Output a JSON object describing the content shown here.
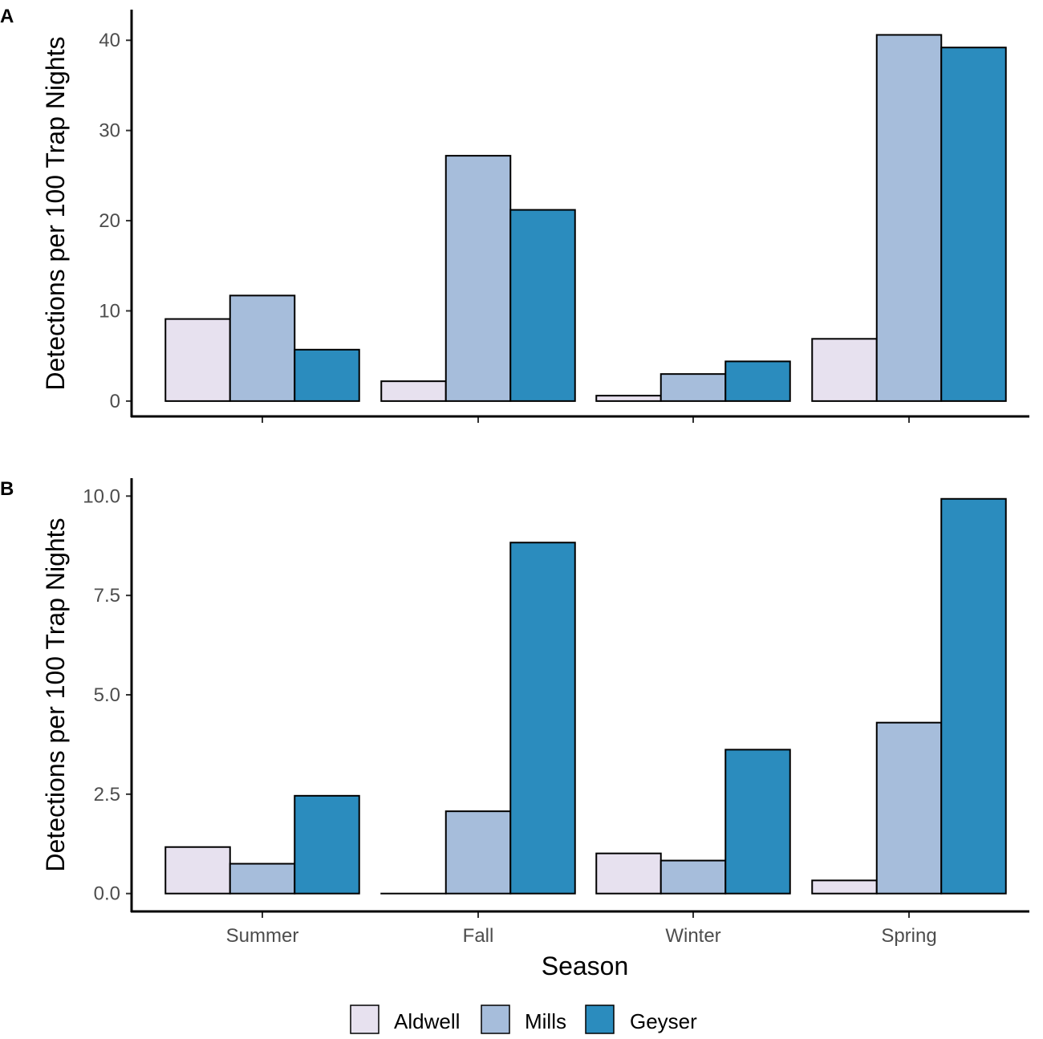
{
  "chart_data": [
    {
      "panel": "A",
      "type": "bar",
      "categories": [
        "Summer",
        "Fall",
        "Winter",
        "Spring"
      ],
      "series": [
        {
          "name": "Aldwell",
          "color": "#e7e1ef",
          "values": [
            9.1,
            2.2,
            0.6,
            6.9
          ]
        },
        {
          "name": "Mills",
          "color": "#a6bddb",
          "values": [
            11.7,
            27.2,
            3.0,
            40.6
          ]
        },
        {
          "name": "Geyser",
          "color": "#2b8cbe",
          "values": [
            5.7,
            21.2,
            4.4,
            39.2
          ]
        }
      ],
      "ylabel": "Detections per 100 Trap Nights",
      "xlabel": "",
      "yticks": [
        "0",
        "10",
        "20",
        "30",
        "40"
      ],
      "ylim": [
        -1.7,
        43.4
      ],
      "show_x_tick_labels": false
    },
    {
      "panel": "B",
      "type": "bar",
      "categories": [
        "Summer",
        "Fall",
        "Winter",
        "Spring"
      ],
      "series": [
        {
          "name": "Aldwell",
          "color": "#e7e1ef",
          "values": [
            1.17,
            0.0,
            1.01,
            0.33
          ]
        },
        {
          "name": "Mills",
          "color": "#a6bddb",
          "values": [
            0.75,
            2.07,
            0.83,
            4.3
          ]
        },
        {
          "name": "Geyser",
          "color": "#2b8cbe",
          "values": [
            2.46,
            8.83,
            3.62,
            9.93
          ]
        }
      ],
      "ylabel": "Detections per 100 Trap Nights",
      "xlabel": "Season",
      "yticks": [
        "0.0",
        "2.5",
        "5.0",
        "7.5",
        "10.0"
      ],
      "ylim": [
        -0.45,
        10.45
      ],
      "show_x_tick_labels": true
    }
  ],
  "legend": {
    "items": [
      {
        "label": "Aldwell",
        "color": "#e7e1ef"
      },
      {
        "label": "Mills",
        "color": "#a6bddb"
      },
      {
        "label": "Geyser",
        "color": "#2b8cbe"
      }
    ]
  }
}
